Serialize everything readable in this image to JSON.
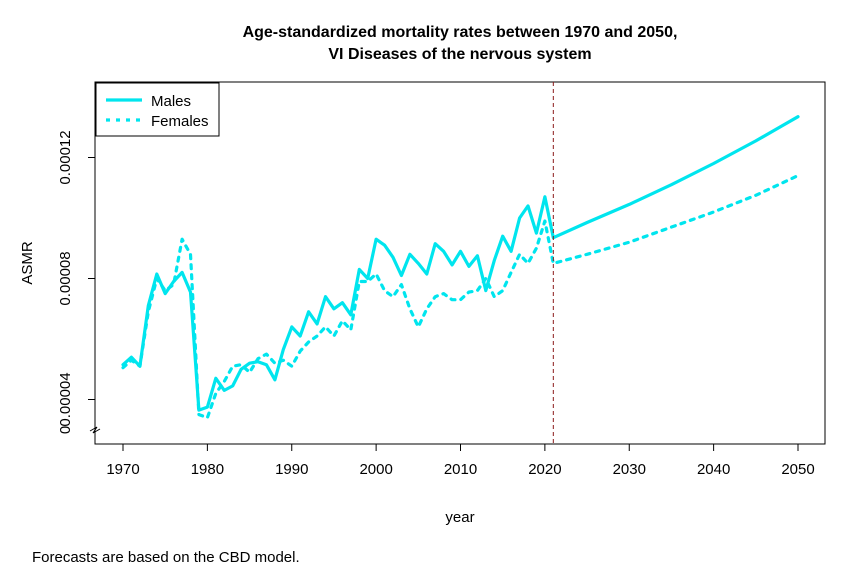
{
  "chart_data": {
    "type": "line",
    "title": [
      "Age-standardized mortality rates between 1970 and 2050,",
      "VI Diseases of the nervous system"
    ],
    "xlabel": "year",
    "ylabel": "ASMR",
    "xlim": [
      1970,
      2050
    ],
    "ylim": [
      3.15e-05,
      0.0001395
    ],
    "xticks": [
      "1970",
      "1980",
      "1990",
      "2000",
      "2010",
      "2020",
      "2030",
      "2040",
      "2050"
    ],
    "yticks": [
      "0.00004",
      "0.00008",
      "0.00012"
    ],
    "y_axis_break": true,
    "vertical_reference_line": {
      "x": 2021,
      "style": "dashed",
      "color": "#8B1A1A"
    },
    "legend": {
      "placement": "top-left"
    },
    "series": [
      {
        "name": "Males",
        "color": "#00E5EE",
        "dash": "solid",
        "x": [
          1970,
          1971,
          1972,
          1973,
          1974,
          1975,
          1976,
          1977,
          1978,
          1979,
          1980,
          1981,
          1982,
          1983,
          1984,
          1985,
          1986,
          1987,
          1988,
          1989,
          1990,
          1991,
          1992,
          1993,
          1994,
          1995,
          1996,
          1997,
          1998,
          1999,
          2000,
          2001,
          2002,
          2003,
          2004,
          2005,
          2006,
          2007,
          2008,
          2009,
          2010,
          2011,
          2012,
          2013,
          2014,
          2015,
          2016,
          2017,
          2018,
          2019,
          2020,
          2021,
          2025,
          2030,
          2035,
          2040,
          2045,
          2050
        ],
        "values": [
          5.15e-05,
          5.4e-05,
          5.1e-05,
          7.1e-05,
          8.15e-05,
          7.5e-05,
          7.9e-05,
          8.2e-05,
          7.55e-05,
          3.65e-05,
          3.75e-05,
          4.7e-05,
          4.3e-05,
          4.45e-05,
          5e-05,
          5.2e-05,
          5.25e-05,
          5.15e-05,
          4.65e-05,
          5.65e-05,
          6.4e-05,
          6.1e-05,
          6.9e-05,
          6.5e-05,
          7.4e-05,
          7e-05,
          7.2e-05,
          6.8e-05,
          8.3e-05,
          8e-05,
          9.3e-05,
          9.1e-05,
          8.7e-05,
          8.1e-05,
          8.8e-05,
          8.5e-05,
          8.15e-05,
          9.15e-05,
          8.9e-05,
          8.45e-05,
          8.9e-05,
          8.4e-05,
          8.75e-05,
          7.6e-05,
          8.6e-05,
          9.4e-05,
          8.9e-05,
          0.0001,
          0.000104,
          9.5e-05,
          0.000107,
          9.35e-05,
          9.85e-05,
          0.0001045,
          0.000111,
          0.000118,
          0.0001255,
          0.0001335
        ]
      },
      {
        "name": "Females",
        "color": "#00E5EE",
        "dash": "dotted",
        "x": [
          1970,
          1971,
          1972,
          1973,
          1974,
          1975,
          1976,
          1977,
          1978,
          1979,
          1980,
          1981,
          1982,
          1983,
          1984,
          1985,
          1986,
          1987,
          1988,
          1989,
          1990,
          1991,
          1992,
          1993,
          1994,
          1995,
          1996,
          1997,
          1998,
          1999,
          2000,
          2001,
          2002,
          2003,
          2004,
          2005,
          2006,
          2007,
          2008,
          2009,
          2010,
          2011,
          2012,
          2013,
          2014,
          2015,
          2016,
          2017,
          2018,
          2019,
          2020,
          2021,
          2025,
          2030,
          2035,
          2040,
          2045,
          2050
        ],
        "values": [
          5.05e-05,
          5.3e-05,
          5.1e-05,
          6.9e-05,
          8e-05,
          7.6e-05,
          7.8e-05,
          9.3e-05,
          8.8e-05,
          3.5e-05,
          3.4e-05,
          4.2e-05,
          4.6e-05,
          5.1e-05,
          5.15e-05,
          4.9e-05,
          5.35e-05,
          5.5e-05,
          5.2e-05,
          5.3e-05,
          5.1e-05,
          5.6e-05,
          5.9e-05,
          6.1e-05,
          6.4e-05,
          6.1e-05,
          6.6e-05,
          6.3e-05,
          7.9e-05,
          7.9e-05,
          8.15e-05,
          7.6e-05,
          7.4e-05,
          7.8e-05,
          7e-05,
          6.4e-05,
          7e-05,
          7.4e-05,
          7.5e-05,
          7.3e-05,
          7.3e-05,
          7.55e-05,
          7.6e-05,
          8e-05,
          7.4e-05,
          7.6e-05,
          8.2e-05,
          8.8e-05,
          8.5e-05,
          9e-05,
          9.9e-05,
          8.5e-05,
          8.8e-05,
          9.2e-05,
          9.7e-05,
          0.000102,
          0.0001075,
          0.000114
        ]
      }
    ]
  },
  "footnote": "Forecasts are based on the CBD model."
}
